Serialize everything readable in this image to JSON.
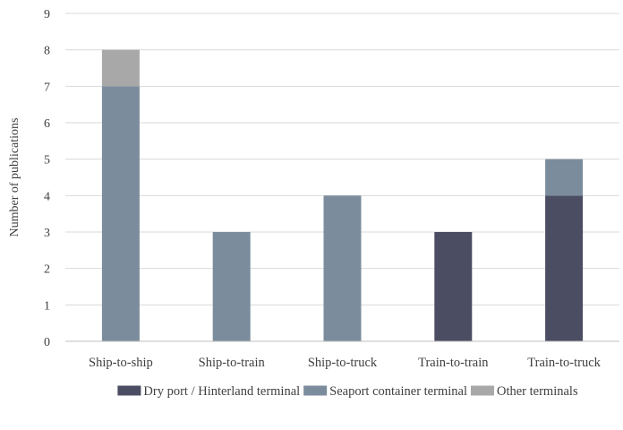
{
  "chart_data": {
    "type": "bar",
    "stacked": true,
    "title": "",
    "xlabel": "",
    "ylabel": "Number of publications",
    "ylim": [
      0,
      9
    ],
    "yticks": [
      0,
      1,
      2,
      3,
      4,
      5,
      6,
      7,
      8,
      9
    ],
    "grid": true,
    "legend_position": "bottom",
    "categories": [
      "Ship-to-ship",
      "Ship-to-train",
      "Ship-to-truck",
      "Train-to-train",
      "Train-to-truck"
    ],
    "series": [
      {
        "name": "Dry port / Hinterland terminal",
        "color": "#4b4d63",
        "values": [
          0,
          0,
          0,
          3,
          4
        ]
      },
      {
        "name": "Seaport container terminal",
        "color": "#7b8d9d",
        "values": [
          7,
          3,
          4,
          0,
          1
        ]
      },
      {
        "name": "Other terminals",
        "color": "#a8a8a8",
        "values": [
          1,
          0,
          0,
          0,
          0
        ]
      }
    ]
  }
}
